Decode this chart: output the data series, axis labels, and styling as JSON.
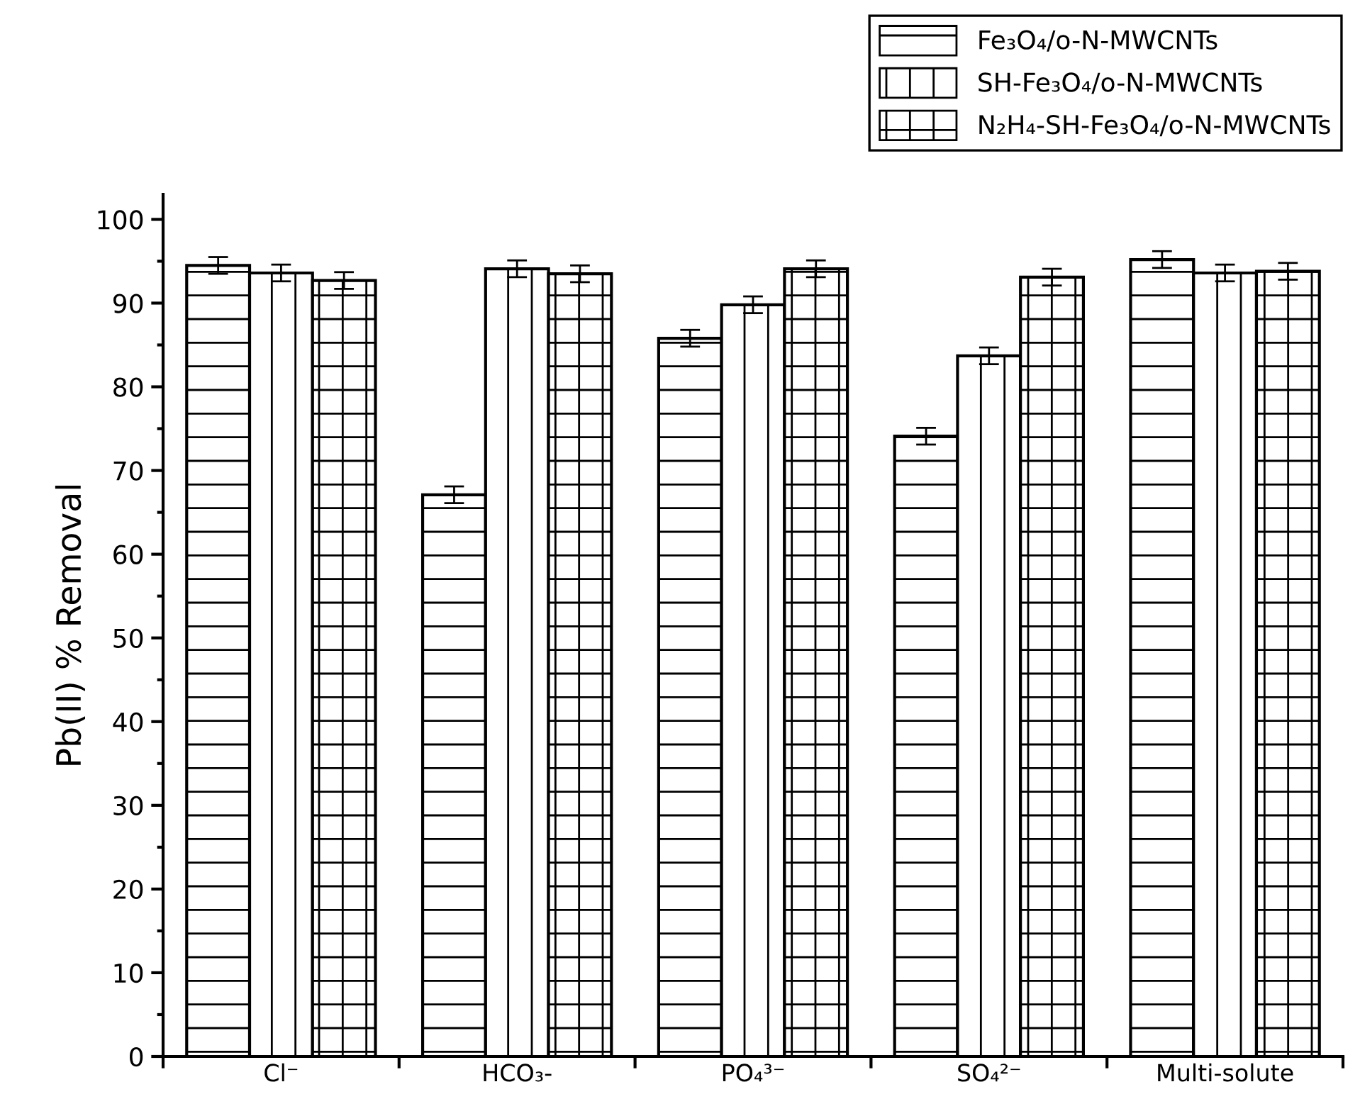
{
  "chart_data": {
    "type": "bar",
    "ylabel": "Pb(II) % Removal",
    "categories": [
      "Cl⁻",
      "HCO₃-",
      "PO₄³⁻",
      "SO₄²⁻",
      "Multi-solute"
    ],
    "series": [
      {
        "name": "Fe₃O₄/o-N-MWCNTs",
        "color": "#000000",
        "values": [
          94.5,
          67.1,
          85.8,
          74.1,
          95.2
        ],
        "errors": [
          1,
          1,
          1,
          1,
          1
        ]
      },
      {
        "name": "SH-Fe₃O₄/o-N-MWCNTs",
        "color": "#000000",
        "values": [
          93.6,
          94.1,
          89.8,
          83.7,
          93.6
        ],
        "errors": [
          1,
          1,
          1,
          1,
          1
        ]
      },
      {
        "name": "N₂H₄-SH-Fe₃O₄/o-N-MWCNTs",
        "color": "#000000",
        "values": [
          92.7,
          93.5,
          94.1,
          93.1,
          93.8
        ],
        "errors": [
          1,
          1,
          1,
          1,
          1
        ]
      }
    ],
    "ylim": [
      0,
      103
    ],
    "yticks": [
      0,
      10,
      20,
      30,
      40,
      50,
      60,
      70,
      80,
      90,
      100
    ],
    "grid": false,
    "legend": "top right"
  }
}
